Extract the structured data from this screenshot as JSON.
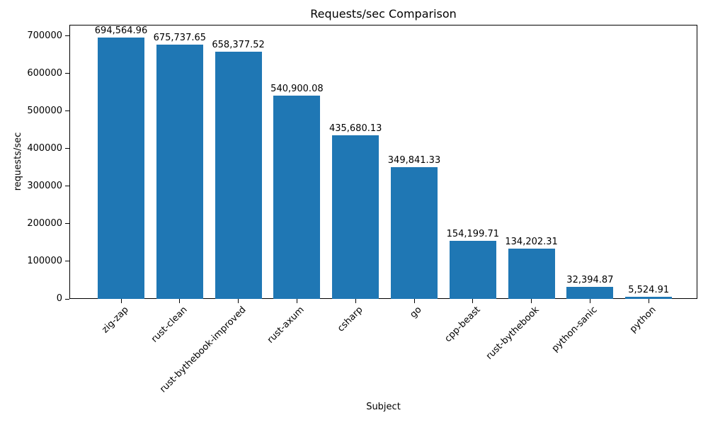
{
  "chart_data": {
    "type": "bar",
    "title": "Requests/sec Comparison",
    "xlabel": "Subject",
    "ylabel": "requests/sec",
    "categories": [
      "zig-zap",
      "rust-clean",
      "rust-bythebook-improved",
      "rust-axum",
      "csharp",
      "go",
      "cpp-beast",
      "rust-bythebook",
      "python-sanic",
      "python"
    ],
    "values": [
      694564.96,
      675737.65,
      658377.52,
      540900.08,
      435680.13,
      349841.33,
      154199.71,
      134202.31,
      32394.87,
      5524.91
    ],
    "value_labels": [
      "694,564.96",
      "675,737.65",
      "658,377.52",
      "540,900.08",
      "435,680.13",
      "349,841.33",
      "154,199.71",
      "134,202.31",
      "32,394.87",
      "5,524.91"
    ],
    "yticks": [
      0,
      100000,
      200000,
      300000,
      400000,
      500000,
      600000,
      700000
    ],
    "ytick_labels": [
      "0",
      "100000",
      "200000",
      "300000",
      "400000",
      "500000",
      "600000",
      "700000"
    ],
    "ylim": [
      0,
      729293
    ],
    "bar_color": "#1f77b4",
    "grid": false,
    "legend": null,
    "xtick_rotation": 45
  }
}
